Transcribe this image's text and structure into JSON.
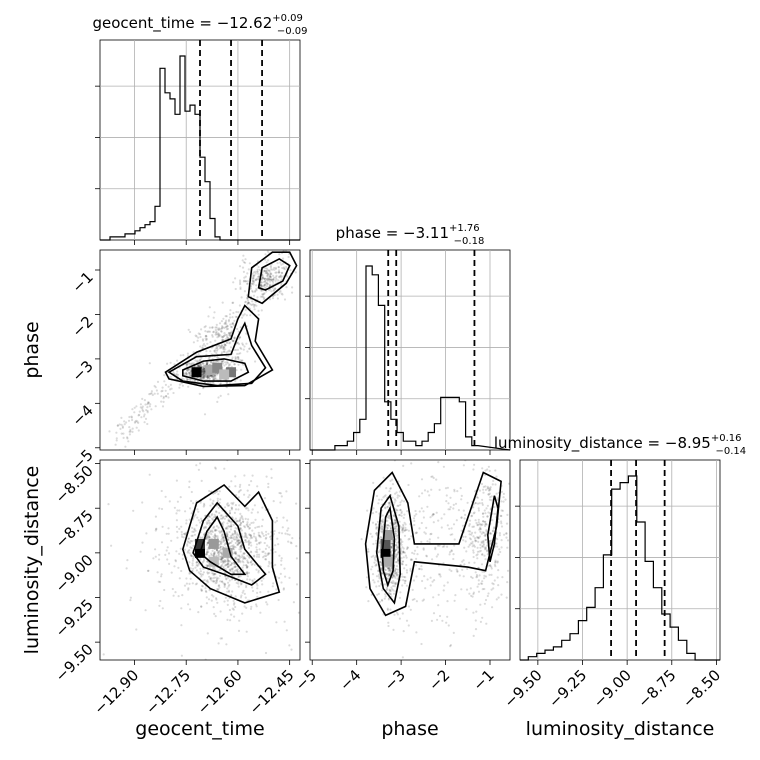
{
  "chart_data": {
    "type": "corner",
    "parameters": [
      "geocent_time",
      "phase",
      "luminosity_distance"
    ],
    "titles": [
      {
        "base": "geocent_time = −12.62",
        "sup": "+0.09",
        "sub": "−0.09"
      },
      {
        "base": "phase = −3.11",
        "sup": "+1.76",
        "sub": "−0.18"
      },
      {
        "base": "luminosity_distance = −8.95",
        "sup": "+0.16",
        "sub": "−0.14"
      }
    ],
    "xlabels": [
      "geocent_time",
      "phase",
      "luminosity_distance"
    ],
    "ylabels": [
      "phase",
      "luminosity_distance"
    ],
    "ranges": [
      [
        -13.0,
        -12.42
      ],
      [
        -5.05,
        -0.55
      ],
      [
        -9.6,
        -8.48
      ]
    ],
    "xticks": [
      {
        "values": [
          -12.9,
          -12.75,
          -12.6,
          -12.45
        ],
        "labels": [
          "−12.90",
          "−12.75",
          "−12.60",
          "−12.45"
        ]
      },
      {
        "values": [
          -5,
          -4,
          -3,
          -2,
          -1
        ],
        "labels": [
          "−5",
          "−4",
          "−3",
          "−2",
          "−1"
        ]
      },
      {
        "values": [
          -9.5,
          -9.25,
          -9.0,
          -8.75,
          -8.5
        ],
        "labels": [
          "−9.50",
          "−9.25",
          "−9.00",
          "−8.75",
          "−8.50"
        ]
      }
    ],
    "yticks": {
      "phase": {
        "values": [
          -1,
          -2,
          -3,
          -4,
          -5
        ],
        "labels": [
          "−1",
          "−2",
          "−3",
          "−4",
          "−5"
        ]
      },
      "luminosity_distance": {
        "values": [
          -8.5,
          -8.75,
          -9.0,
          -9.25,
          -9.5
        ],
        "labels": [
          "−8.50",
          "−8.75",
          "−9.00",
          "−9.25",
          "−9.50"
        ]
      }
    },
    "histograms": [
      {
        "param": "geocent_time",
        "edges_start": -13.0,
        "bin_width": 0.0145,
        "counts": [
          0,
          0,
          1,
          1,
          1,
          2,
          2,
          3,
          4,
          5,
          6,
          11,
          56,
          48,
          46,
          41,
          60,
          42,
          44,
          41,
          27,
          19,
          7,
          1,
          0
        ],
        "quantiles": [
          -12.71,
          -12.62,
          -12.53
        ]
      },
      {
        "param": "phase",
        "edges_start": -5.05,
        "bin_width": 0.14,
        "counts": [
          0,
          0,
          0,
          0,
          1,
          1,
          2,
          4,
          7,
          42,
          40,
          33,
          11,
          7,
          4,
          2,
          2,
          1,
          2,
          4,
          6,
          12,
          12,
          12,
          11,
          3,
          1
        ],
        "quantiles": [
          -3.29,
          -3.11,
          -1.35
        ]
      },
      {
        "param": "luminosity_distance",
        "edges_start": -9.6,
        "bin_width": 0.0467,
        "counts": [
          0,
          0.5,
          1,
          1.5,
          2,
          3,
          4,
          6,
          8,
          11,
          16,
          26,
          27,
          28,
          21,
          15,
          11,
          7,
          5,
          3,
          1,
          0,
          0,
          0
        ],
        "quantiles": [
          -9.09,
          -8.95,
          -8.79
        ]
      }
    ],
    "quantiles_shown": true,
    "grid": true,
    "scatter_color": "#000000",
    "line_color": "#000000"
  }
}
